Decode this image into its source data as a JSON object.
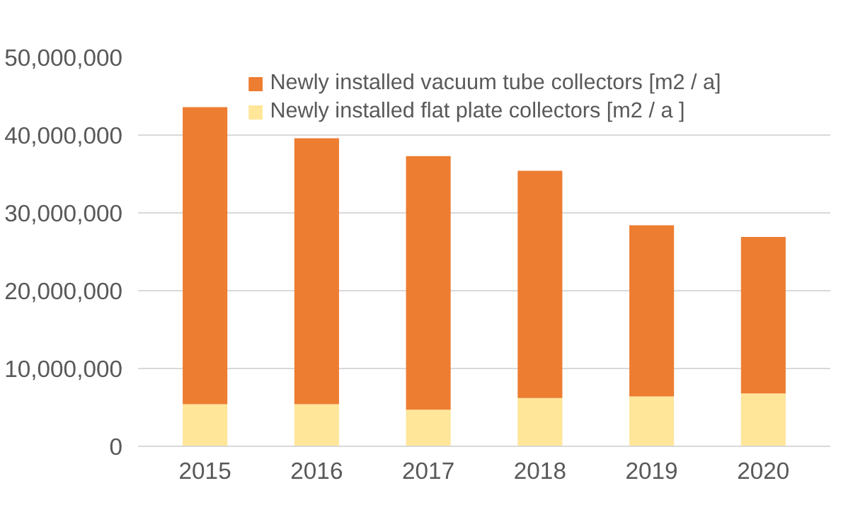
{
  "chart_data": {
    "type": "bar",
    "stacked": true,
    "categories": [
      "2015",
      "2016",
      "2017",
      "2018",
      "2019",
      "2020"
    ],
    "series": [
      {
        "name": "Newly installed flat plate collectors [m2 / a ]",
        "color": "#ffe699",
        "values": [
          5400000,
          5400000,
          4700000,
          6200000,
          6400000,
          6800000
        ]
      },
      {
        "name": "Newly installed vacuum tube collectors [m2 / a]",
        "color": "#ed7d31",
        "values": [
          38200000,
          34200000,
          32600000,
          29200000,
          22000000,
          20100000
        ]
      }
    ],
    "ylim": [
      0,
      50000000
    ],
    "yticks": [
      {
        "value": 0,
        "label": "0"
      },
      {
        "value": 10000000,
        "label": "10,000,000"
      },
      {
        "value": 20000000,
        "label": "20,000,000"
      },
      {
        "value": 30000000,
        "label": "30,000,000"
      },
      {
        "value": 40000000,
        "label": "40,000,000"
      },
      {
        "value": 50000000,
        "label": "50,000,000"
      }
    ],
    "grid": "y",
    "legend": "top"
  }
}
